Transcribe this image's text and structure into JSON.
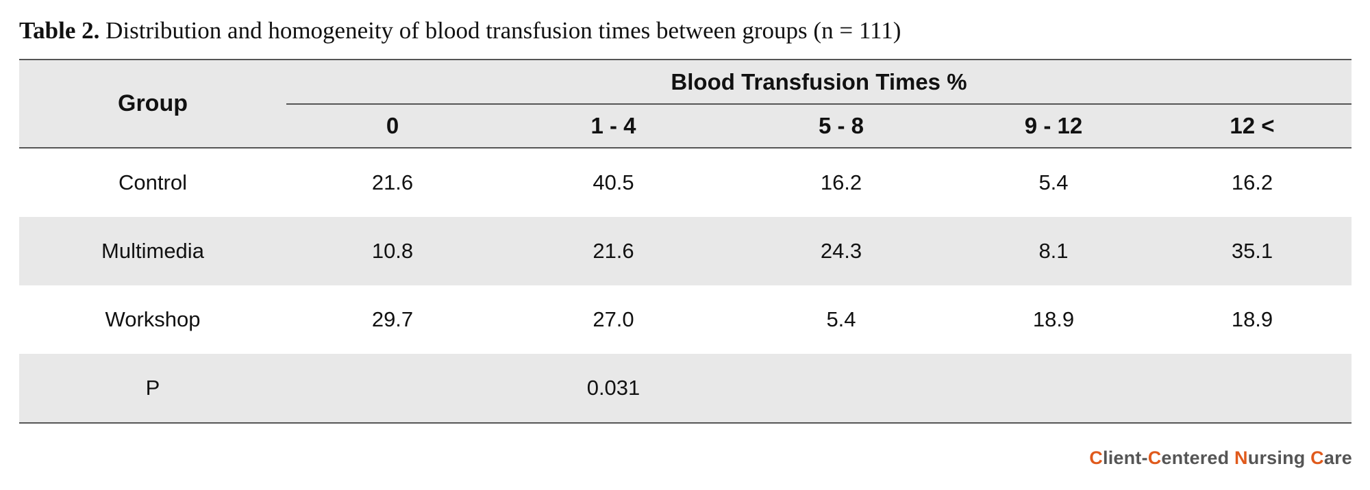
{
  "caption": {
    "label": "Table 2.",
    "text": "Distribution and homogeneity of blood transfusion times between groups (n = 111)"
  },
  "table": {
    "group_header": "Group",
    "span_header": "Blood Transfusion Times %",
    "columns": [
      "0",
      "1 - 4",
      "5 - 8",
      "9 - 12",
      "12 <"
    ],
    "rows": [
      {
        "group": "Control",
        "values": [
          "21.6",
          "40.5",
          "16.2",
          "5.4",
          "16.2"
        ]
      },
      {
        "group": "Multimedia",
        "values": [
          "10.8",
          "21.6",
          "24.3",
          "8.1",
          "35.1"
        ]
      },
      {
        "group": "Workshop",
        "values": [
          "29.7",
          "27.0",
          "5.4",
          "18.9",
          "18.9"
        ]
      }
    ],
    "p_row": {
      "label": "P",
      "value": "0.031"
    }
  },
  "brand": {
    "parts": [
      {
        "text": "C",
        "accent": true
      },
      {
        "text": "lient-",
        "accent": false
      },
      {
        "text": "C",
        "accent": true
      },
      {
        "text": "entered ",
        "accent": false
      },
      {
        "text": "N",
        "accent": true
      },
      {
        "text": "ursing ",
        "accent": false
      },
      {
        "text": "C",
        "accent": true
      },
      {
        "text": "are",
        "accent": false
      }
    ],
    "accent_color": "#e05a1c",
    "text_color": "#555555"
  }
}
